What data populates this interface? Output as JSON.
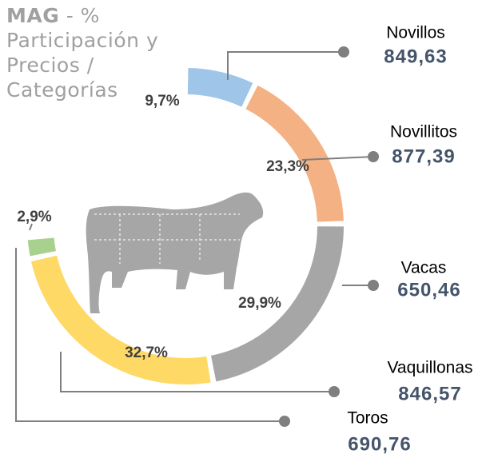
{
  "chart_data": {
    "type": "donut",
    "title": {
      "bold": "MAG",
      "rest": "- % Participación y Precios / Categorías"
    },
    "categories": [
      "Novillos",
      "Novillitos",
      "Vacas",
      "Vaquillonas",
      "Toros"
    ],
    "values": [
      9.7,
      23.3,
      29.9,
      32.7,
      2.9
    ],
    "value_labels": [
      "9,7%",
      "23,3%",
      "29,9%",
      "32,7%",
      "2,9%"
    ],
    "colors": [
      "#9fc5e8",
      "#f4b183",
      "#a6a6a6",
      "#ffd966",
      "#a9d18e"
    ],
    "prices": [
      849.63,
      877.39,
      650.46,
      846.57,
      690.76
    ],
    "price_labels": [
      "849,63",
      "877,39",
      "650,46",
      "846,57",
      "690,76"
    ]
  }
}
